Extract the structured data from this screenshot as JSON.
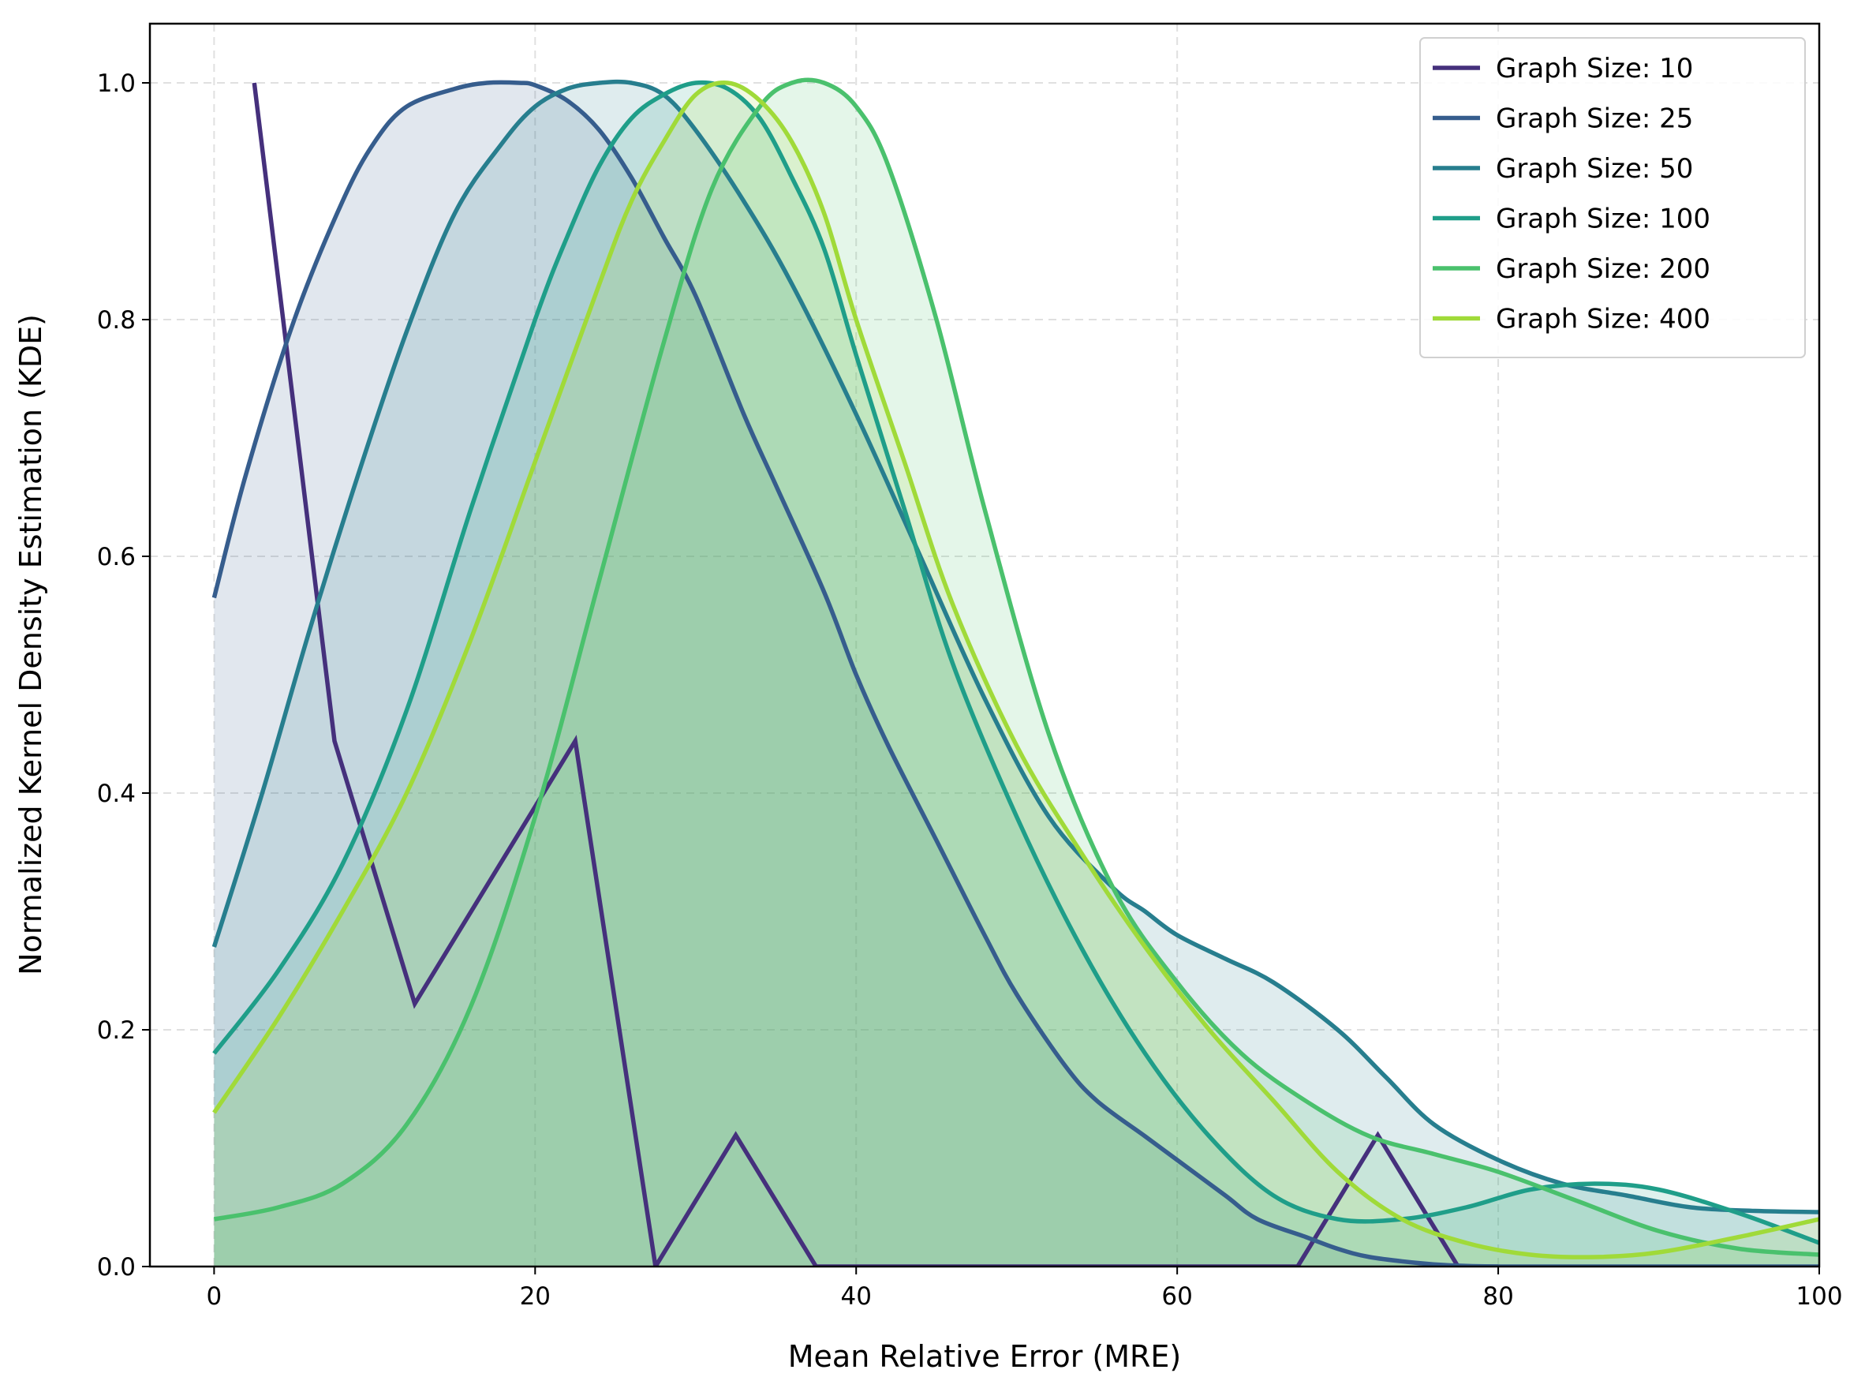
{
  "chart_data": {
    "type": "area",
    "title": "",
    "xlabel": "Mean Relative Error (MRE)",
    "ylabel": "Normalized Kernel Density Estimation (KDE)",
    "xlim": [
      -4,
      100
    ],
    "ylim": [
      0,
      1.05
    ],
    "xticks": [
      0,
      20,
      40,
      60,
      80,
      100
    ],
    "yticks": [
      0.0,
      0.2,
      0.4,
      0.6,
      0.8,
      1.0
    ],
    "xtick_labels": [
      "0",
      "20",
      "40",
      "60",
      "80",
      "100"
    ],
    "ytick_labels": [
      "0.0",
      "0.2",
      "0.4",
      "0.6",
      "0.8",
      "1.0"
    ],
    "grid": true,
    "legend_position": "top-right",
    "series": [
      {
        "name": "Graph Size: 10",
        "color": "#45307c",
        "filled": false,
        "x": [
          2.5,
          7.5,
          12.5,
          22.5,
          27.5,
          32.5,
          37.5,
          67.5,
          72.5,
          77.5,
          80
        ],
        "y": [
          1.0,
          0.444,
          0.222,
          0.444,
          0.0,
          0.111,
          0.0,
          0.0,
          0.111,
          0.0,
          0.0
        ]
      },
      {
        "name": "Graph Size: 25",
        "color": "#365d8d",
        "filled": true,
        "x": [
          0,
          2,
          5,
          8,
          10,
          12,
          15,
          17,
          19,
          20,
          22,
          24,
          26,
          28,
          30,
          33,
          35,
          38,
          40,
          42,
          45,
          48,
          50,
          53,
          55,
          58,
          60,
          63,
          65,
          68,
          70,
          72,
          75,
          77,
          80,
          85,
          90,
          95,
          100
        ],
        "y": [
          0.565,
          0.67,
          0.8,
          0.9,
          0.95,
          0.98,
          0.995,
          1.0,
          1.0,
          0.998,
          0.985,
          0.96,
          0.92,
          0.87,
          0.82,
          0.72,
          0.66,
          0.57,
          0.5,
          0.44,
          0.36,
          0.28,
          0.23,
          0.17,
          0.14,
          0.11,
          0.09,
          0.06,
          0.04,
          0.025,
          0.015,
          0.008,
          0.003,
          0.001,
          0.0,
          0.0,
          0.0,
          0.0,
          0.0
        ]
      },
      {
        "name": "Graph Size: 50",
        "color": "#277e8e",
        "filled": true,
        "x": [
          0,
          3,
          6,
          9,
          12,
          15,
          18,
          20,
          22,
          24,
          26,
          28,
          30,
          33,
          36,
          40,
          44,
          48,
          52,
          56,
          58,
          60,
          63,
          66,
          70,
          73,
          76,
          80,
          84,
          88,
          92,
          96,
          100
        ],
        "y": [
          0.27,
          0.4,
          0.54,
          0.67,
          0.79,
          0.89,
          0.95,
          0.98,
          0.995,
          1.0,
          1.0,
          0.99,
          0.96,
          0.9,
          0.83,
          0.72,
          0.6,
          0.48,
          0.38,
          0.32,
          0.3,
          0.28,
          0.26,
          0.24,
          0.2,
          0.16,
          0.12,
          0.09,
          0.07,
          0.06,
          0.05,
          0.047,
          0.046
        ]
      },
      {
        "name": "Graph Size: 100",
        "color": "#1f9e89",
        "filled": true,
        "x": [
          0,
          4,
          8,
          12,
          16,
          20,
          22,
          24,
          26,
          28,
          30,
          32,
          34,
          36,
          38,
          40,
          43,
          46,
          50,
          54,
          58,
          62,
          66,
          70,
          74,
          78,
          82,
          86,
          90,
          95,
          100
        ],
        "y": [
          0.18,
          0.25,
          0.34,
          0.47,
          0.64,
          0.8,
          0.87,
          0.93,
          0.97,
          0.99,
          1.0,
          0.995,
          0.97,
          0.92,
          0.86,
          0.77,
          0.64,
          0.51,
          0.38,
          0.27,
          0.18,
          0.11,
          0.06,
          0.04,
          0.04,
          0.05,
          0.065,
          0.07,
          0.065,
          0.045,
          0.02
        ]
      },
      {
        "name": "Graph Size: 200",
        "color": "#4ac16d",
        "filled": true,
        "x": [
          0,
          4,
          8,
          12,
          16,
          20,
          24,
          28,
          31,
          34,
          36,
          38,
          40,
          42,
          45,
          48,
          52,
          56,
          60,
          64,
          68,
          72,
          76,
          80,
          85,
          90,
          95,
          100
        ],
        "y": [
          0.04,
          0.05,
          0.07,
          0.12,
          0.22,
          0.38,
          0.58,
          0.78,
          0.91,
          0.98,
          1.0,
          1.0,
          0.98,
          0.93,
          0.8,
          0.64,
          0.45,
          0.32,
          0.24,
          0.18,
          0.14,
          0.11,
          0.095,
          0.08,
          0.055,
          0.03,
          0.015,
          0.01
        ]
      },
      {
        "name": "Graph Size: 400",
        "color": "#a0da39",
        "filled": true,
        "x": [
          0,
          4,
          8,
          12,
          16,
          20,
          24,
          26,
          28,
          30,
          32,
          34,
          36,
          38,
          40,
          43,
          46,
          50,
          54,
          58,
          62,
          66,
          70,
          74,
          78,
          82,
          86,
          90,
          95,
          100
        ],
        "y": [
          0.13,
          0.21,
          0.3,
          0.4,
          0.53,
          0.68,
          0.83,
          0.9,
          0.95,
          0.99,
          1.0,
          0.985,
          0.95,
          0.89,
          0.8,
          0.68,
          0.56,
          0.44,
          0.35,
          0.27,
          0.2,
          0.14,
          0.08,
          0.04,
          0.02,
          0.01,
          0.008,
          0.012,
          0.025,
          0.04
        ]
      }
    ]
  }
}
